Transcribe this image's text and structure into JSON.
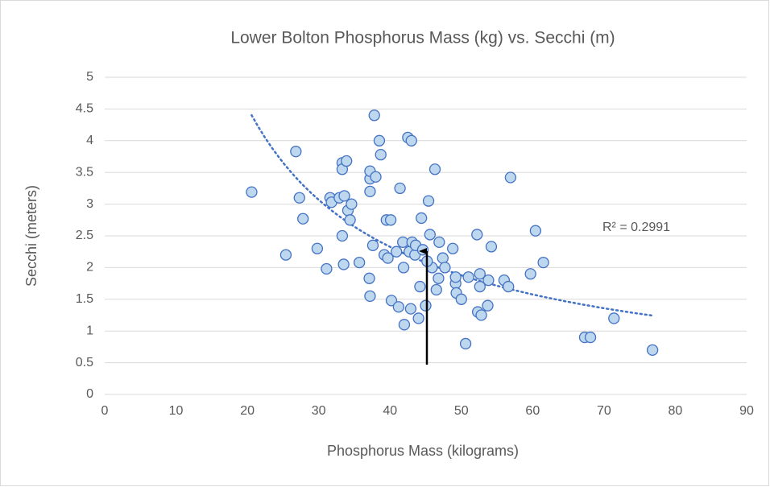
{
  "chart_data": {
    "type": "scatter",
    "title": "Lower Bolton Phosphorus Mass (kg) vs. Secchi (m)",
    "x_label": "Phosphorus Mass (kilograms)",
    "y_label": "Secchi (meters)",
    "annotation": "R² = 0.2991",
    "series": [
      {
        "color": "#4472c4",
        "fill": "#bdd7ee",
        "x": [
          20.6,
          25.4,
          26.8,
          27.3,
          27.8,
          29.8,
          31.1,
          31.6,
          31.8,
          32.9,
          33.3,
          33.3,
          33.3,
          33.5,
          33.6,
          33.9,
          34.1,
          34.4,
          34.6,
          35.7,
          37.1,
          37.2,
          37.2,
          37.2,
          37.2,
          37.6,
          37.8,
          38.0,
          38.5,
          38.7,
          39.2,
          39.5,
          39.7,
          40.1,
          40.2,
          40.9,
          41.2,
          41.4,
          41.8,
          41.9,
          42.0,
          42.5,
          42.7,
          42.9,
          43.0,
          43.1,
          43.5,
          43.6,
          44.0,
          44.2,
          44.4,
          44.6,
          45.0,
          45.4,
          45.6,
          45.9,
          46.3,
          46.5,
          46.8,
          46.9,
          47.4,
          47.7,
          48.8,
          49.2,
          49.2,
          49.3,
          50.0,
          50.6,
          51.0,
          52.2,
          52.3,
          52.6,
          52.6,
          52.8,
          53.7,
          53.8,
          54.2,
          56.0,
          56.6,
          56.9,
          59.7,
          60.4,
          61.5,
          67.3,
          68.1,
          71.4,
          76.8,
          45.2
        ],
        "values": [
          3.19,
          2.2,
          3.83,
          3.1,
          2.77,
          2.3,
          1.98,
          3.1,
          3.03,
          3.1,
          3.65,
          3.55,
          2.5,
          2.05,
          3.13,
          3.68,
          2.9,
          2.75,
          3.0,
          2.08,
          1.83,
          1.55,
          3.4,
          3.52,
          3.2,
          2.35,
          4.4,
          3.43,
          4.0,
          3.78,
          2.2,
          2.75,
          2.15,
          2.75,
          1.48,
          2.25,
          1.38,
          3.25,
          2.4,
          2.0,
          1.1,
          4.05,
          2.25,
          1.35,
          4.0,
          2.4,
          2.2,
          2.35,
          1.2,
          1.7,
          2.78,
          2.28,
          1.4,
          3.05,
          2.52,
          2.0,
          3.55,
          1.65,
          1.83,
          2.4,
          2.15,
          2.0,
          2.3,
          1.75,
          1.85,
          1.6,
          1.5,
          0.8,
          1.85,
          2.52,
          1.3,
          1.9,
          1.7,
          1.25,
          1.4,
          1.8,
          2.33,
          1.8,
          1.7,
          3.42,
          1.9,
          2.58,
          2.08,
          0.9,
          0.9,
          1.2,
          0.7,
          2.1
        ]
      }
    ],
    "xlim": [
      0,
      90
    ],
    "xticks": [
      0,
      10,
      20,
      30,
      40,
      50,
      60,
      70,
      80,
      90
    ],
    "ylim": [
      0,
      5
    ],
    "yticks": [
      0,
      0.5,
      1,
      1.5,
      2,
      2.5,
      3,
      3.5,
      4,
      4.5,
      5
    ],
    "grid": true,
    "trendline": "power"
  }
}
